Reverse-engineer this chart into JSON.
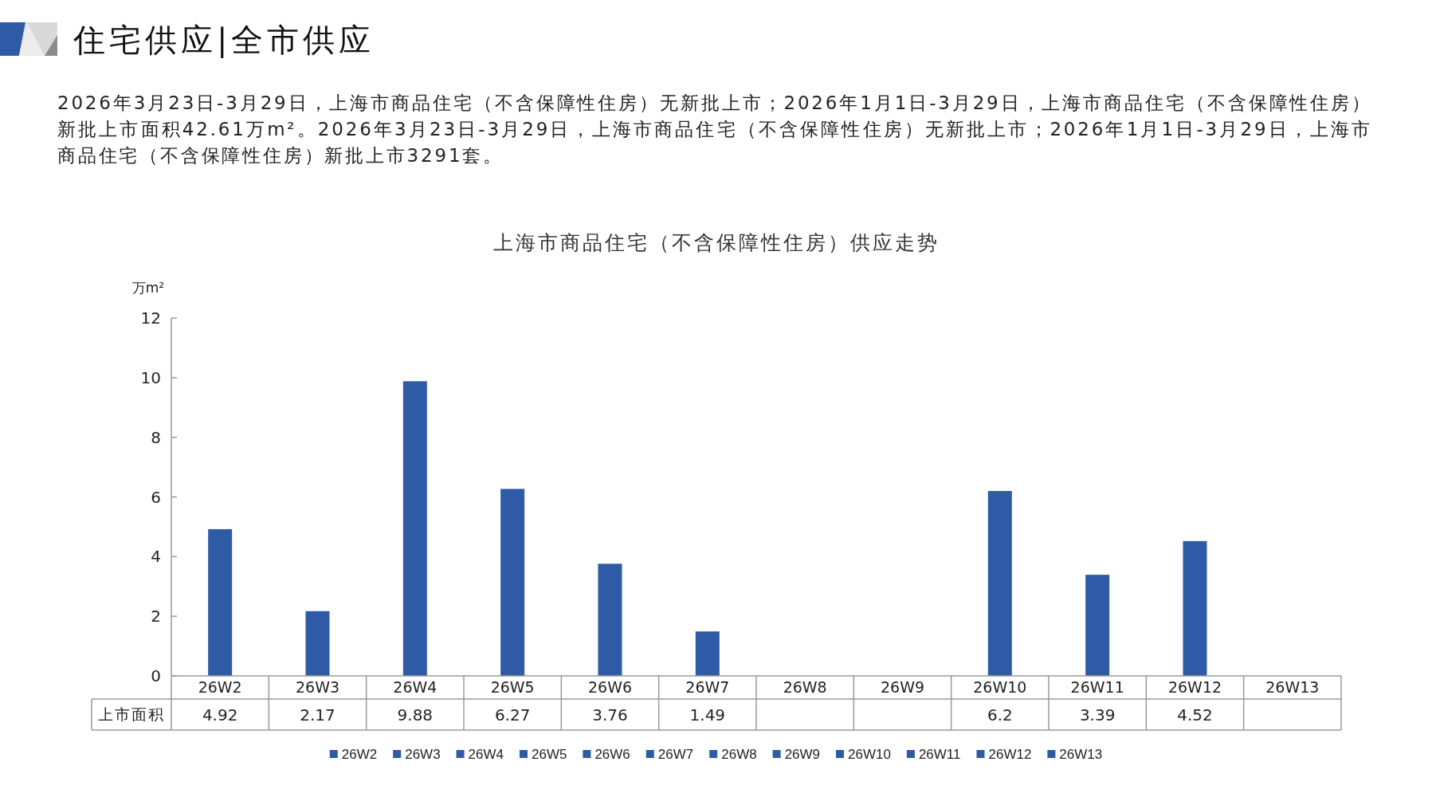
{
  "chart_data": {
    "type": "bar",
    "title": "上海市商品住宅（不含保障性住房）供应走势",
    "ylabel": "万m²",
    "categories": [
      "26W2",
      "26W3",
      "26W4",
      "26W5",
      "26W6",
      "26W7",
      "26W8",
      "26W9",
      "26W10",
      "26W11",
      "26W12",
      "26W13"
    ],
    "series": [
      {
        "name": "上市面积",
        "colors": [
          "#2f5aa6",
          "#2f5aa6",
          "#2f5aa6",
          "#2f5aa6",
          "#2f5aa6",
          "#2f5aa6",
          "#2f5aa6",
          "#2f5aa6",
          "#2f5aa6",
          "#2f5aa6",
          "#2f5aa6",
          "#2f5aa6"
        ],
        "values": [
          4.92,
          2.17,
          9.88,
          6.27,
          3.76,
          1.49,
          null,
          null,
          6.2,
          3.39,
          4.52,
          null
        ]
      }
    ],
    "ylim": [
      0,
      12
    ],
    "yticks": [
      0,
      2,
      4,
      6,
      8,
      10,
      12
    ],
    "data_labels": true,
    "legend": "bottom",
    "annotations": [
      "住宅供应|全市供应",
      "2026年3月23日-3月29日，上海市商品住宅（不含保障性住房）无新批上市；2026年1月1日-3月29日，上海市商品住宅（不含保障性住房）新批上市面积42.61万m²。2026年3月23日-3月29日，上海市商品住宅（不含保障性住房）无新批上市；2026年1月1日-3月29日，上海市商品住宅（不含保障性住房）新批上市3291套。"
    ]
  }
}
